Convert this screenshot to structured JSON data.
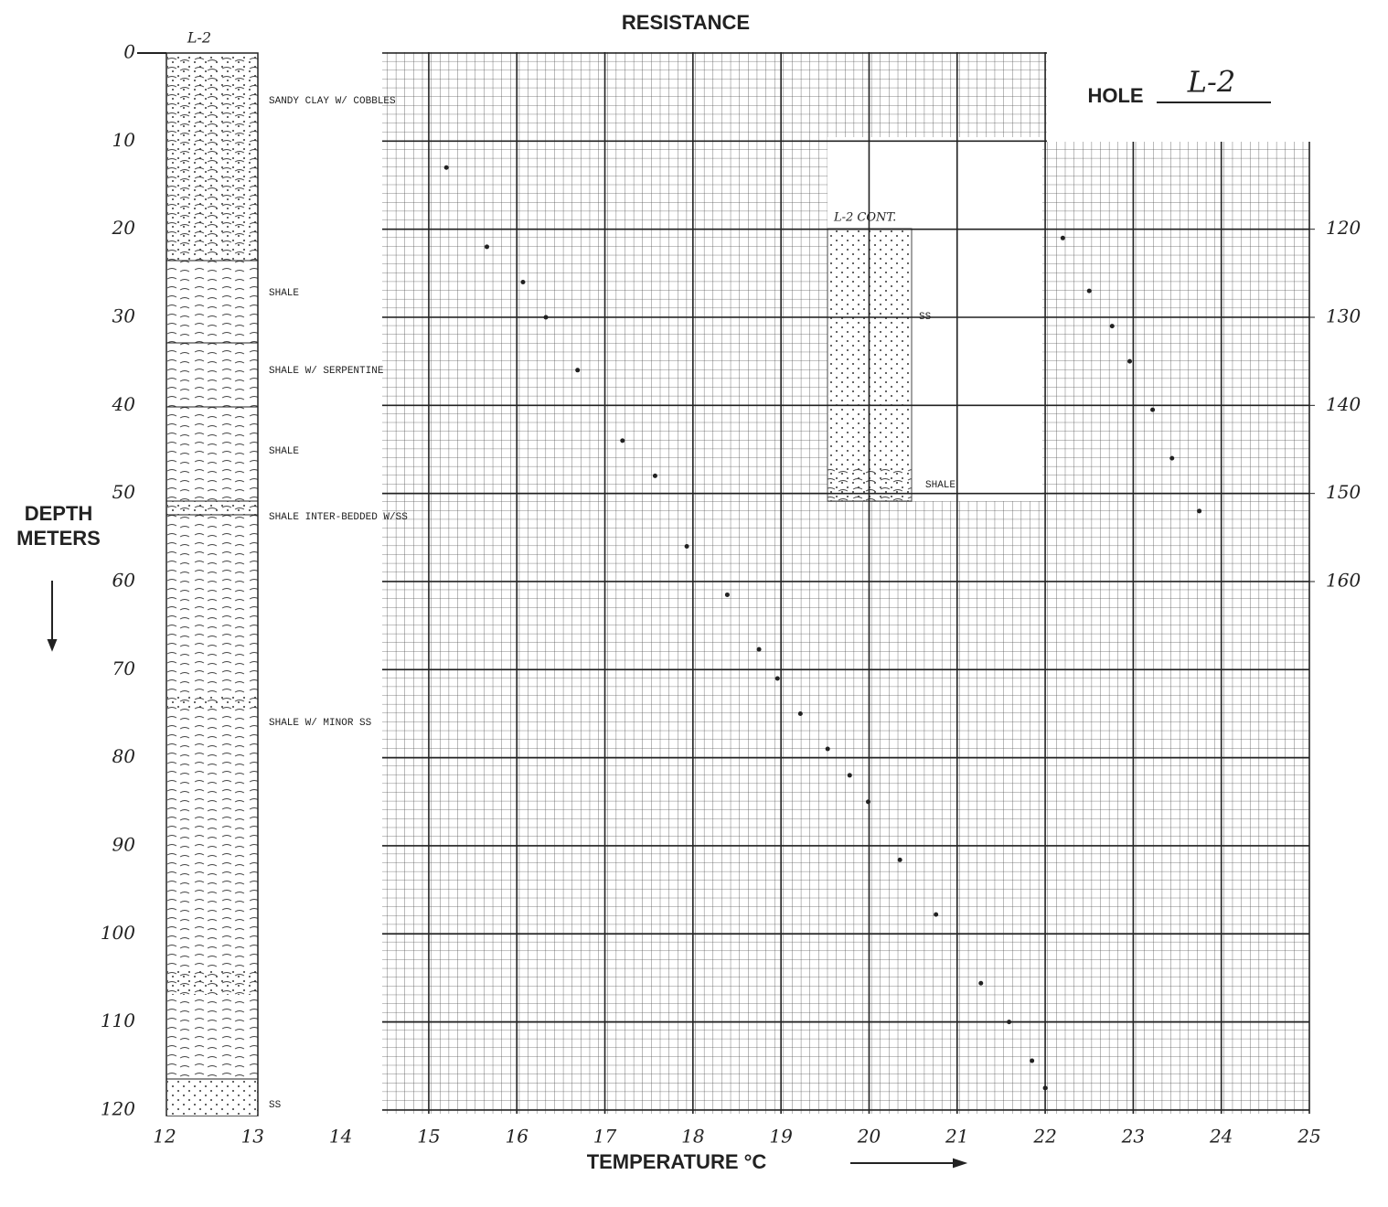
{
  "chart_data": {
    "type": "scatter",
    "title": "RESISTANCE",
    "hole_label": "HOLE",
    "hole_name": "L-2",
    "column_header": "L-2",
    "y_label": [
      "DEPTH",
      "METERS"
    ],
    "x_label": "TEMPERATURE °C",
    "xlim": [
      12,
      25
    ],
    "xticks": [
      12,
      13,
      14,
      15,
      16,
      17,
      18,
      19,
      20,
      21,
      22,
      23,
      24,
      25
    ],
    "ylim": [
      0,
      120
    ],
    "yticks": [
      0,
      10,
      20,
      30,
      40,
      50,
      60,
      70,
      80,
      90,
      100,
      110,
      120
    ],
    "y2lim": [
      100,
      220
    ],
    "y2ticks": [
      120,
      130,
      140,
      150,
      160
    ],
    "grid": true,
    "lithology": [
      "SANDY CLAY W/ COBBLES",
      "SHALE",
      "SHALE W/ SERPENTINE",
      "SHALE",
      "SHALE INTER-BEDDED W/SS",
      "SHALE W/ MINOR SS",
      "SS"
    ],
    "inset": {
      "header": "L-2 CONT.",
      "labels": [
        "SS",
        "SHALE"
      ]
    },
    "series": [
      {
        "color": "#222222",
        "axis": "y",
        "x": [
          15.2,
          15.66,
          16.07,
          16.33,
          16.69,
          17.2,
          17.57,
          17.93,
          18.39,
          18.75,
          18.96,
          19.22,
          19.53,
          19.78,
          19.99,
          20.35,
          20.76,
          21.27,
          21.59,
          21.85,
          22.0
        ],
        "values": [
          13,
          22,
          26,
          30,
          36,
          44,
          48,
          56,
          61.5,
          67.7,
          71,
          75,
          79,
          82,
          85,
          91.6,
          97.8,
          105.6,
          110,
          114.4,
          117.5
        ]
      },
      {
        "color": "#222222",
        "axis": "y2",
        "x": [
          22.2,
          22.5,
          22.76,
          22.96,
          23.22,
          23.44,
          23.75
        ],
        "values": [
          121,
          127,
          131,
          135,
          140.5,
          146,
          152
        ]
      }
    ]
  }
}
